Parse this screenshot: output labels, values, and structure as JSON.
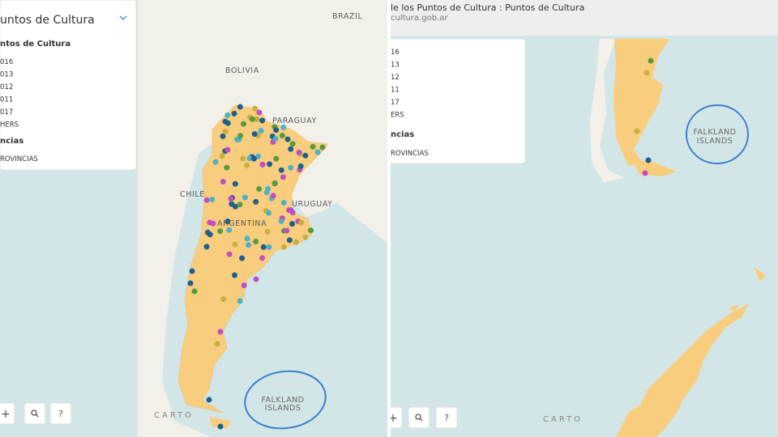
{
  "left_panel": {
    "title": "untos de Cultura",
    "legend_heading": "ntos de Cultura",
    "legend_items": [
      "016",
      "013",
      "012",
      "011",
      "017",
      "HERS"
    ],
    "layer_heading": "ncias",
    "layer_item": "ROVINCIAS",
    "map_labels": {
      "brazil": "BRAZIL",
      "bolivia": "BOLIVIA",
      "paraguay": "PARAGUAY",
      "chile": "CHILE",
      "argentina": "ARGENTINA",
      "uruguay": "URUGUAY"
    },
    "falklands": [
      "FALKLAND",
      "ISLANDS"
    ],
    "attribution": "CARTO",
    "zoom_in": "+",
    "help": "?"
  },
  "right_panel": {
    "window_title": "le los Puntos de Cultura : Puntos de Cultura",
    "url": "cultura.gob.ar",
    "legend_items": [
      "16",
      "13",
      "12",
      "11",
      "17",
      "ERS"
    ],
    "layer_heading": "ncias",
    "layer_item": "ROVINCIAS",
    "falklands": [
      "FALKLAND",
      "ISLANDS"
    ],
    "attribution": "CARTO",
    "zoom_in": "+",
    "help": "?"
  }
}
